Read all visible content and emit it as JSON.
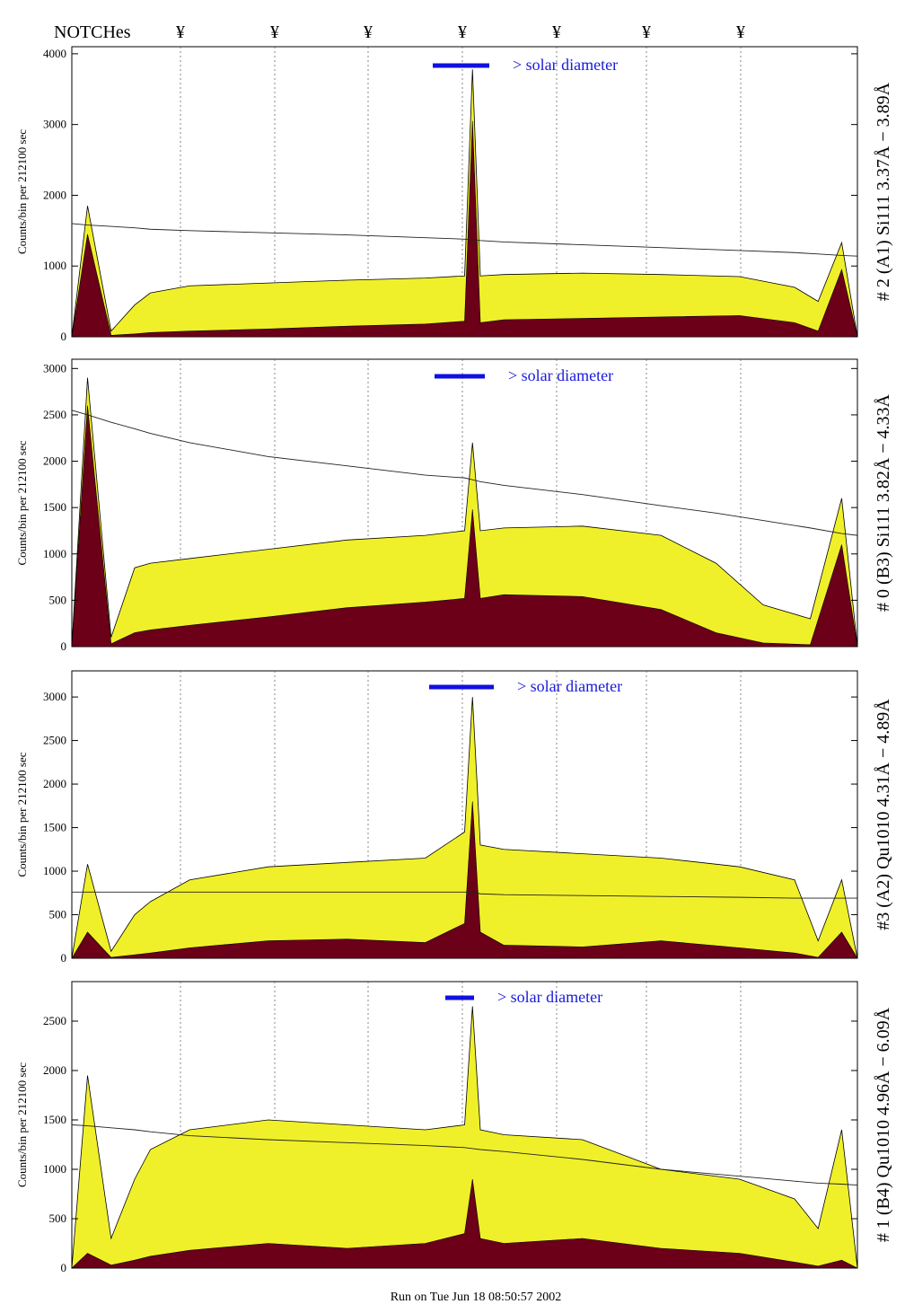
{
  "header": {
    "notches_label": "NOTCHes",
    "notch_marker": "¥"
  },
  "footer": {
    "run_text": "Run on Tue Jun 18 08:50:57 2002"
  },
  "colors": {
    "fill_yellow": "#f0f02a",
    "fill_dark": "#6b0018",
    "solar_bar": "#1010e0",
    "solar_text": "#1a1adb"
  },
  "solar_label": "> solar diameter",
  "chart_data": [
    {
      "type": "area",
      "title": "",
      "right_label": "# 2 (A1) Si111  3.37Å − 3.89Å",
      "ylabel": "Counts/bin per  212100 sec",
      "ylim": [
        0,
        4100
      ],
      "yticks": [
        0,
        1000,
        2000,
        3000,
        4000
      ],
      "ytick_labels": [
        "0",
        "1000",
        "2000",
        "3000",
        "4000"
      ],
      "x": [
        0,
        0.02,
        0.05,
        0.08,
        0.1,
        0.15,
        0.25,
        0.35,
        0.45,
        0.5,
        0.51,
        0.52,
        0.55,
        0.65,
        0.75,
        0.85,
        0.92,
        0.95,
        0.98,
        1.0
      ],
      "series": [
        {
          "values": [
            0,
            1850,
            80,
            450,
            620,
            720,
            760,
            800,
            830,
            860,
            3780,
            860,
            880,
            900,
            880,
            850,
            700,
            500,
            1330,
            0
          ]
        },
        {
          "values": [
            0,
            1450,
            20,
            40,
            60,
            80,
            110,
            150,
            180,
            220,
            3050,
            200,
            240,
            260,
            280,
            300,
            200,
            80,
            950,
            0
          ]
        },
        {
          "values": [
            1600,
            1580,
            1560,
            1540,
            1520,
            1500,
            1470,
            1440,
            1400,
            1380,
            1370,
            1360,
            1340,
            1300,
            1260,
            1220,
            1190,
            1170,
            1150,
            1140
          ]
        }
      ]
    },
    {
      "type": "area",
      "title": "",
      "right_label": "# 0 (B3) Si111  3.82Å − 4.33Å",
      "ylabel": "Counts/bin per  212100 sec",
      "ylim": [
        0,
        3100
      ],
      "yticks": [
        0,
        500,
        1000,
        1500,
        2000,
        2500,
        3000
      ],
      "ytick_labels": [
        "0",
        "500",
        "1000",
        "1500",
        "2000",
        "2500",
        "3000"
      ],
      "x": [
        0,
        0.02,
        0.05,
        0.08,
        0.1,
        0.15,
        0.25,
        0.35,
        0.45,
        0.5,
        0.51,
        0.52,
        0.55,
        0.65,
        0.75,
        0.82,
        0.88,
        0.94,
        0.98,
        1.0
      ],
      "series": [
        {
          "values": [
            0,
            2900,
            100,
            850,
            900,
            950,
            1050,
            1150,
            1200,
            1250,
            2200,
            1250,
            1280,
            1300,
            1200,
            900,
            450,
            300,
            1600,
            0
          ]
        },
        {
          "values": [
            0,
            2600,
            30,
            150,
            180,
            230,
            320,
            420,
            480,
            520,
            1480,
            520,
            560,
            540,
            400,
            150,
            40,
            20,
            1100,
            0
          ]
        },
        {
          "values": [
            2550,
            2500,
            2420,
            2350,
            2300,
            2200,
            2050,
            1950,
            1850,
            1820,
            1800,
            1780,
            1740,
            1640,
            1520,
            1440,
            1360,
            1280,
            1220,
            1200
          ]
        }
      ]
    },
    {
      "type": "area",
      "title": "",
      "right_label": "#3 (A2) Qu1010  4.31Å − 4.89Å",
      "ylabel": "Counts/bin per  212100 sec",
      "ylim": [
        0,
        3300
      ],
      "yticks": [
        0,
        500,
        1000,
        1500,
        2000,
        2500,
        3000
      ],
      "ytick_labels": [
        "0",
        "500",
        "1000",
        "1500",
        "2000",
        "2500",
        "3000"
      ],
      "x": [
        0,
        0.02,
        0.05,
        0.08,
        0.1,
        0.15,
        0.25,
        0.35,
        0.45,
        0.5,
        0.51,
        0.52,
        0.55,
        0.65,
        0.75,
        0.85,
        0.92,
        0.95,
        0.98,
        1.0
      ],
      "series": [
        {
          "values": [
            0,
            1080,
            80,
            500,
            650,
            900,
            1050,
            1100,
            1150,
            1450,
            3000,
            1300,
            1250,
            1200,
            1150,
            1050,
            900,
            200,
            900,
            0
          ]
        },
        {
          "values": [
            0,
            300,
            10,
            40,
            60,
            120,
            200,
            220,
            180,
            400,
            1800,
            300,
            150,
            130,
            200,
            120,
            60,
            10,
            300,
            0
          ]
        },
        {
          "values": [
            760,
            760,
            760,
            760,
            760,
            760,
            760,
            760,
            760,
            760,
            760,
            740,
            730,
            720,
            710,
            700,
            690,
            690,
            690,
            690
          ]
        }
      ]
    },
    {
      "type": "area",
      "title": "",
      "right_label": "# 1 (B4) Qu1010 4.96Å − 6.09Å",
      "ylabel": "Counts/bin per  212100 sec",
      "ylim": [
        0,
        2900
      ],
      "yticks": [
        0,
        500,
        1000,
        1500,
        2000,
        2500
      ],
      "ytick_labels": [
        "0",
        "500",
        "1000",
        "1500",
        "2000",
        "2500"
      ],
      "x": [
        0,
        0.02,
        0.05,
        0.08,
        0.1,
        0.15,
        0.25,
        0.35,
        0.45,
        0.5,
        0.51,
        0.52,
        0.55,
        0.65,
        0.75,
        0.85,
        0.92,
        0.95,
        0.98,
        1.0
      ],
      "series": [
        {
          "values": [
            0,
            1950,
            300,
            900,
            1200,
            1400,
            1500,
            1450,
            1400,
            1450,
            2650,
            1400,
            1350,
            1300,
            1000,
            900,
            700,
            400,
            1400,
            0
          ]
        },
        {
          "values": [
            0,
            150,
            30,
            80,
            120,
            180,
            250,
            200,
            250,
            350,
            900,
            300,
            250,
            300,
            200,
            150,
            60,
            20,
            80,
            0
          ]
        },
        {
          "values": [
            1450,
            1440,
            1420,
            1400,
            1380,
            1340,
            1300,
            1270,
            1240,
            1220,
            1210,
            1200,
            1180,
            1100,
            1000,
            930,
            880,
            860,
            850,
            840
          ]
        }
      ]
    }
  ]
}
